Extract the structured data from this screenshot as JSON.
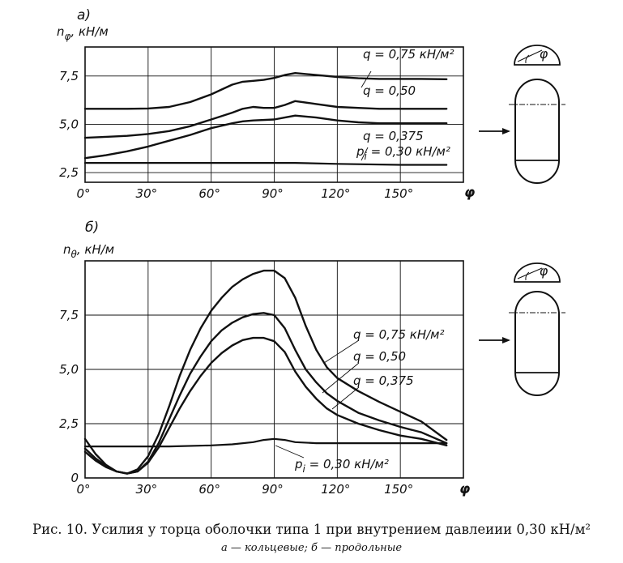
{
  "chart_data": [
    {
      "type": "line",
      "panel_label": "а)",
      "ylabel_sym": "n",
      "ylabel_sub": "φ",
      "ylabel_unit": ", кН/м",
      "xlabel": "φ",
      "xlim": [
        0,
        180
      ],
      "ylim": [
        2.0,
        9.0
      ],
      "x_ticks": [
        "0°",
        "30°",
        "60°",
        "90°",
        "120°",
        "150°"
      ],
      "x_tick_values": [
        0,
        30,
        60,
        90,
        120,
        150
      ],
      "y_ticks": [
        "2,5",
        "5,0",
        "7,5"
      ],
      "y_tick_values": [
        2.5,
        5.0,
        7.5
      ],
      "grid": true,
      "series": [
        {
          "name": "q = 0,75 кН/м²",
          "x": [
            0,
            10,
            20,
            30,
            40,
            50,
            60,
            65,
            70,
            75,
            80,
            85,
            90,
            95,
            100,
            110,
            120,
            130,
            140,
            150,
            160,
            172
          ],
          "y": [
            5.8,
            5.8,
            5.8,
            5.82,
            5.9,
            6.15,
            6.55,
            6.8,
            7.05,
            7.2,
            7.25,
            7.3,
            7.4,
            7.55,
            7.65,
            7.55,
            7.45,
            7.38,
            7.35,
            7.35,
            7.35,
            7.33
          ]
        },
        {
          "name": "q = 0,50",
          "x": [
            0,
            10,
            20,
            30,
            40,
            50,
            60,
            70,
            75,
            80,
            85,
            90,
            95,
            100,
            110,
            120,
            130,
            140,
            150,
            160,
            172
          ],
          "y": [
            4.3,
            4.35,
            4.4,
            4.5,
            4.65,
            4.9,
            5.25,
            5.6,
            5.8,
            5.9,
            5.85,
            5.85,
            6.0,
            6.2,
            6.05,
            5.9,
            5.85,
            5.8,
            5.8,
            5.8,
            5.8
          ]
        },
        {
          "name": "q = 0,375",
          "x": [
            0,
            10,
            20,
            30,
            40,
            50,
            60,
            70,
            75,
            80,
            90,
            95,
            100,
            110,
            120,
            130,
            140,
            150,
            160,
            172
          ],
          "y": [
            3.25,
            3.4,
            3.6,
            3.85,
            4.15,
            4.45,
            4.8,
            5.05,
            5.15,
            5.2,
            5.25,
            5.35,
            5.45,
            5.35,
            5.2,
            5.1,
            5.05,
            5.05,
            5.05,
            5.05
          ]
        },
        {
          "name": "p_i = 0,30 кН/м²",
          "x": [
            0,
            30,
            60,
            90,
            100,
            120,
            150,
            172
          ],
          "y": [
            3.0,
            3.0,
            3.0,
            3.0,
            3.0,
            2.95,
            2.9,
            2.9
          ]
        }
      ],
      "annotations": {
        "q75": "q = 0,75 кН/м²",
        "q50": "q = 0,50",
        "q375": "q = 0,375",
        "pi_sym": "p",
        "pi_sub": "i",
        "pi_rest": " = 0,30 кН/м²"
      }
    },
    {
      "type": "line",
      "panel_label": "б)",
      "ylabel_sym": "n",
      "ylabel_sub": "θ",
      "ylabel_unit": ", кН/м",
      "xlabel": "φ",
      "xlim": [
        0,
        180
      ],
      "ylim": [
        0,
        10
      ],
      "x_ticks": [
        "0°",
        "30°",
        "60°",
        "90°",
        "120°",
        "150°"
      ],
      "x_tick_values": [
        0,
        30,
        60,
        90,
        120,
        150
      ],
      "y_ticks": [
        "0",
        "2,5",
        "5,0",
        "7,5"
      ],
      "y_tick_values": [
        0,
        2.5,
        5.0,
        7.5
      ],
      "grid": true,
      "series": [
        {
          "name": "q = 0,75 кН/м²",
          "x": [
            0,
            5,
            10,
            15,
            20,
            25,
            30,
            35,
            40,
            45,
            50,
            55,
            60,
            65,
            70,
            75,
            80,
            85,
            90,
            95,
            100,
            105,
            110,
            115,
            120,
            130,
            140,
            150,
            160,
            172
          ],
          "y": [
            1.8,
            1.1,
            0.6,
            0.3,
            0.2,
            0.4,
            1.0,
            2.0,
            3.3,
            4.7,
            5.9,
            6.9,
            7.7,
            8.3,
            8.8,
            9.15,
            9.4,
            9.55,
            9.55,
            9.2,
            8.3,
            7.0,
            5.9,
            5.1,
            4.6,
            4.0,
            3.5,
            3.05,
            2.6,
            1.75
          ]
        },
        {
          "name": "q = 0,50",
          "x": [
            0,
            5,
            10,
            15,
            20,
            25,
            30,
            35,
            40,
            45,
            50,
            55,
            60,
            65,
            70,
            75,
            80,
            85,
            90,
            95,
            100,
            105,
            110,
            115,
            120,
            130,
            140,
            150,
            160,
            172
          ],
          "y": [
            1.35,
            0.9,
            0.55,
            0.3,
            0.2,
            0.3,
            0.75,
            1.6,
            2.7,
            3.8,
            4.8,
            5.6,
            6.3,
            6.8,
            7.15,
            7.4,
            7.55,
            7.6,
            7.5,
            6.9,
            5.9,
            5.0,
            4.4,
            3.9,
            3.55,
            3.0,
            2.65,
            2.35,
            2.1,
            1.6
          ]
        },
        {
          "name": "q = 0,375",
          "x": [
            0,
            5,
            10,
            15,
            20,
            25,
            30,
            35,
            40,
            45,
            50,
            55,
            60,
            65,
            70,
            75,
            80,
            85,
            90,
            95,
            100,
            105,
            110,
            115,
            120,
            130,
            140,
            150,
            160,
            172
          ],
          "y": [
            1.2,
            0.8,
            0.5,
            0.3,
            0.2,
            0.3,
            0.7,
            1.4,
            2.3,
            3.2,
            4.0,
            4.7,
            5.3,
            5.75,
            6.1,
            6.35,
            6.45,
            6.45,
            6.3,
            5.8,
            4.9,
            4.2,
            3.65,
            3.2,
            2.9,
            2.5,
            2.2,
            1.95,
            1.8,
            1.5
          ]
        },
        {
          "name": "p_i = 0,30 кН/м²",
          "x": [
            0,
            20,
            40,
            60,
            70,
            80,
            85,
            90,
            95,
            100,
            110,
            120,
            140,
            160,
            172
          ],
          "y": [
            1.45,
            1.45,
            1.45,
            1.5,
            1.55,
            1.65,
            1.75,
            1.8,
            1.75,
            1.65,
            1.6,
            1.6,
            1.6,
            1.6,
            1.6
          ]
        }
      ],
      "annotations": {
        "q75": "q = 0,75 кН/м²",
        "q50": "q = 0,50",
        "q375": "q = 0,375",
        "pi_sym": "p",
        "pi_sub": "i",
        "pi_rest": " = 0,30 кН/м²"
      }
    }
  ],
  "sketch_angle_label": "φ",
  "caption": {
    "main": "Рис. 10. Усилия у торца оболочки типа 1 при внутрением давлеиии 0,30 кН/м²",
    "sub": "а — кольцевые; б — продольные"
  }
}
